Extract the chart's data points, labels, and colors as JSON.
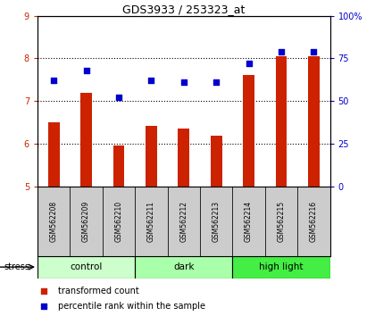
{
  "title": "GDS3933 / 253323_at",
  "samples": [
    "GSM562208",
    "GSM562209",
    "GSM562210",
    "GSM562211",
    "GSM562212",
    "GSM562213",
    "GSM562214",
    "GSM562215",
    "GSM562216"
  ],
  "red_bars": [
    6.5,
    7.2,
    5.95,
    6.42,
    6.35,
    6.18,
    7.62,
    8.05,
    8.05
  ],
  "blue_dots": [
    62,
    68,
    52,
    62,
    61,
    61,
    72,
    79,
    79
  ],
  "bar_color": "#cc2200",
  "dot_color": "#0000cc",
  "ylim_left": [
    5,
    9
  ],
  "ylim_right": [
    0,
    100
  ],
  "yticks_left": [
    5,
    6,
    7,
    8,
    9
  ],
  "yticks_right": [
    0,
    25,
    50,
    75,
    100
  ],
  "ytick_labels_right": [
    "0",
    "25",
    "50",
    "75",
    "100%"
  ],
  "groups": [
    {
      "label": "control",
      "start": 0,
      "end": 3,
      "color": "#ccffcc"
    },
    {
      "label": "dark",
      "start": 3,
      "end": 6,
      "color": "#aaffaa"
    },
    {
      "label": "high light",
      "start": 6,
      "end": 9,
      "color": "#44ee44"
    }
  ],
  "stress_label": "stress",
  "legend_red": "transformed count",
  "legend_blue": "percentile rank within the sample",
  "tick_area_color": "#cccccc",
  "bar_width": 0.35
}
